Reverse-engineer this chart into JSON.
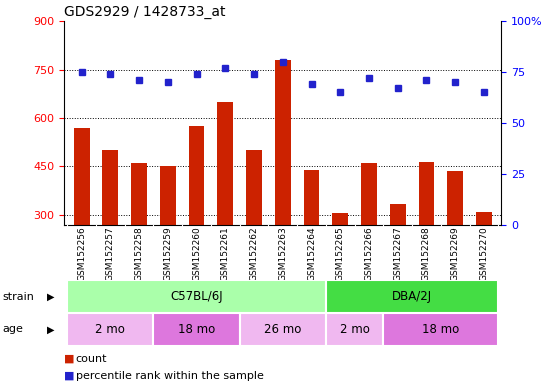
{
  "title": "GDS2929 / 1428733_at",
  "samples": [
    "GSM152256",
    "GSM152257",
    "GSM152258",
    "GSM152259",
    "GSM152260",
    "GSM152261",
    "GSM152262",
    "GSM152263",
    "GSM152264",
    "GSM152265",
    "GSM152266",
    "GSM152267",
    "GSM152268",
    "GSM152269",
    "GSM152270"
  ],
  "counts": [
    570,
    500,
    460,
    452,
    575,
    650,
    500,
    780,
    440,
    305,
    460,
    335,
    465,
    435,
    310
  ],
  "percentile": [
    75,
    74,
    71,
    70,
    74,
    77,
    74,
    80,
    69,
    65,
    72,
    67,
    71,
    70,
    65
  ],
  "ylim_left": [
    270,
    900
  ],
  "ylim_right": [
    0,
    100
  ],
  "yticks_left": [
    300,
    450,
    600,
    750,
    900
  ],
  "yticks_right": [
    0,
    25,
    50,
    75,
    100
  ],
  "bar_color": "#cc2200",
  "dot_color": "#2222cc",
  "strain_groups": [
    {
      "label": "C57BL/6J",
      "start": 0,
      "end": 8,
      "color": "#aaffaa"
    },
    {
      "label": "DBA/2J",
      "start": 9,
      "end": 14,
      "color": "#44dd44"
    }
  ],
  "age_groups": [
    {
      "label": "2 mo",
      "start": 0,
      "end": 2,
      "color": "#f0b8f0"
    },
    {
      "label": "18 mo",
      "start": 3,
      "end": 5,
      "color": "#dd77dd"
    },
    {
      "label": "26 mo",
      "start": 6,
      "end": 8,
      "color": "#f0b8f0"
    },
    {
      "label": "2 mo",
      "start": 9,
      "end": 10,
      "color": "#f0b8f0"
    },
    {
      "label": "18 mo",
      "start": 11,
      "end": 14,
      "color": "#dd77dd"
    }
  ],
  "legend_count_label": "count",
  "legend_pct_label": "percentile rank within the sample",
  "xlabel_area_bg": "#d8d8d8",
  "plot_bg": "#ffffff"
}
